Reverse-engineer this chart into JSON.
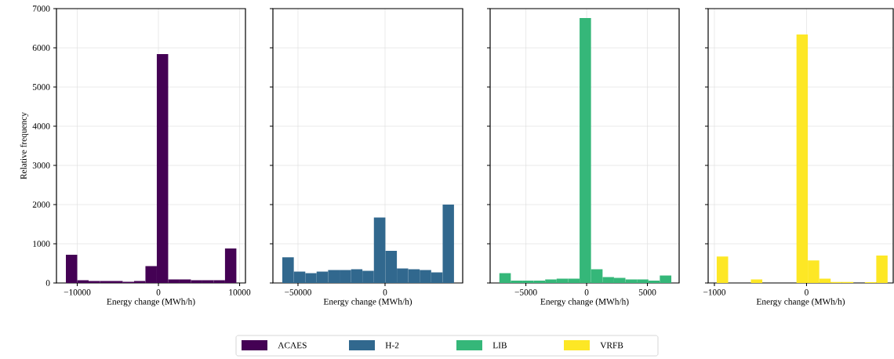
{
  "chart_data": [
    {
      "type": "histogram",
      "xlabel": "Energy change (MWh/h)",
      "ylabel": "Relative frequency",
      "grid": true,
      "legend": "bottom",
      "bins": [
        -11400,
        -10000,
        -8600,
        -7200,
        -5800,
        -4400,
        -3000,
        -1600,
        -200,
        1200,
        2600,
        4000,
        5400,
        6800,
        8200,
        9600
      ],
      "series": [
        {
          "name": "ACAES",
          "color": "#440154",
          "values": [
            720,
            70,
            50,
            50,
            50,
            30,
            50,
            430,
            5840,
            90,
            90,
            70,
            70,
            70,
            880
          ]
        }
      ],
      "xlim": [
        -12560,
        10720
      ],
      "ylim": [
        0,
        7000
      ],
      "xticks": [
        {
          "value": -10000,
          "label": "−10000"
        },
        0,
        10000
      ],
      "yticks": [
        0,
        1000,
        2000,
        3000,
        4000,
        5000,
        6000,
        7000
      ]
    },
    {
      "type": "histogram",
      "xlabel": "Energy change (MWh/h)",
      "grid": true,
      "legend": "bottom",
      "tick_labels": "x",
      "bins": [
        -59000,
        -52400,
        -45800,
        -39300,
        -32700,
        -26100,
        -19500,
        -13000,
        -6400,
        200,
        6800,
        13300,
        19900,
        26500,
        33100,
        39600
      ],
      "series": [
        {
          "name": "H-2",
          "color": "#31688e",
          "values": [
            655,
            290,
            250,
            290,
            330,
            330,
            350,
            310,
            1670,
            820,
            370,
            350,
            330,
            270,
            2000
          ]
        }
      ],
      "xlim": [
        -64400,
        44600
      ],
      "ylim": [
        0,
        7000
      ],
      "xticks": [
        {
          "value": -50000,
          "label": "−50000"
        },
        0
      ],
      "yticks": [
        0,
        1000,
        2000,
        3000,
        4000,
        5000,
        6000,
        7000
      ]
    },
    {
      "type": "histogram",
      "xlabel": "Energy change (MWh/h)",
      "grid": true,
      "legend": "bottom",
      "tick_labels": "x",
      "bins": [
        -7180,
        -6240,
        -5290,
        -4350,
        -3410,
        -2470,
        -1520,
        -580,
        360,
        1310,
        2250,
        3190,
        4140,
        5080,
        6020,
        6970
      ],
      "series": [
        {
          "name": "LIB",
          "color": "#35b779",
          "values": [
            250,
            60,
            60,
            60,
            90,
            110,
            110,
            6760,
            350,
            150,
            130,
            90,
            90,
            60,
            190
          ]
        }
      ],
      "xlim": [
        -7940,
        7610
      ],
      "ylim": [
        0,
        7000
      ],
      "xticks": [
        {
          "value": -5000,
          "label": "−5000"
        },
        0,
        5000
      ],
      "yticks": [
        0,
        1000,
        2000,
        3000,
        4000,
        5000,
        6000,
        7000
      ]
    },
    {
      "type": "histogram",
      "xlabel": "Energy change (MWh/h)",
      "grid": true,
      "legend": "bottom",
      "tick_labels": "x",
      "bins": [
        -975,
        -851,
        -728,
        -604,
        -480,
        -357,
        -233,
        -109,
        14,
        138,
        262,
        385,
        509,
        633,
        757,
        880
      ],
      "series": [
        {
          "name": "VRFB",
          "color": "#fde725",
          "values": [
            675,
            0,
            0,
            90,
            0,
            0,
            0,
            6340,
            575,
            110,
            25,
            25,
            0,
            20,
            700
          ]
        }
      ],
      "xlim": [
        -1068,
        941
      ],
      "ylim": [
        0,
        7000
      ],
      "xticks": [
        {
          "value": -1000,
          "label": "−1000"
        },
        0
      ],
      "yticks": [
        0,
        1000,
        2000,
        3000,
        4000,
        5000,
        6000,
        7000
      ]
    }
  ]
}
